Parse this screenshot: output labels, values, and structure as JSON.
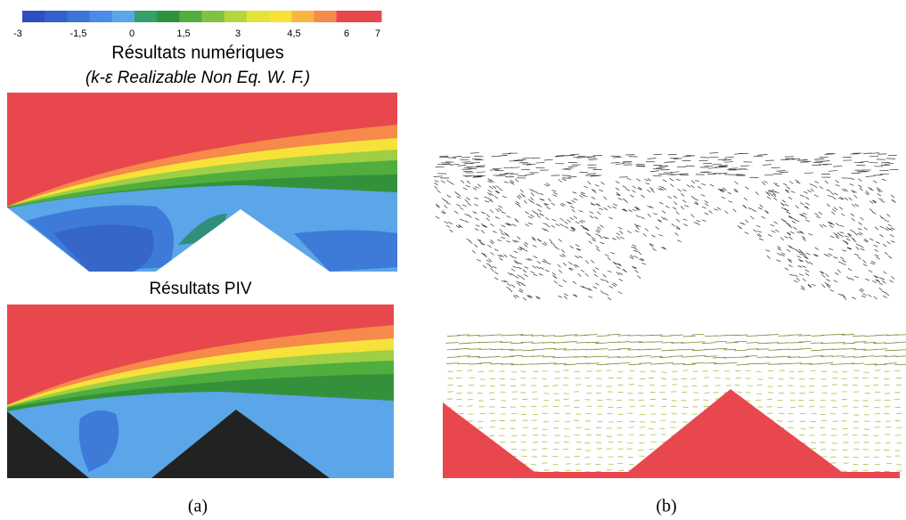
{
  "colorbar": {
    "ticks": [
      "-3",
      "-1,5",
      "0",
      "1,5",
      "3",
      "4,5",
      "6",
      "7"
    ]
  },
  "panel_a": {
    "title": "Résultats numériques",
    "subtitle": "(k-ε Realizable Non Eq. W. F.)",
    "piv_title": "Résultats PIV",
    "label": "(a)"
  },
  "panel_b": {
    "label": "(b)"
  }
}
